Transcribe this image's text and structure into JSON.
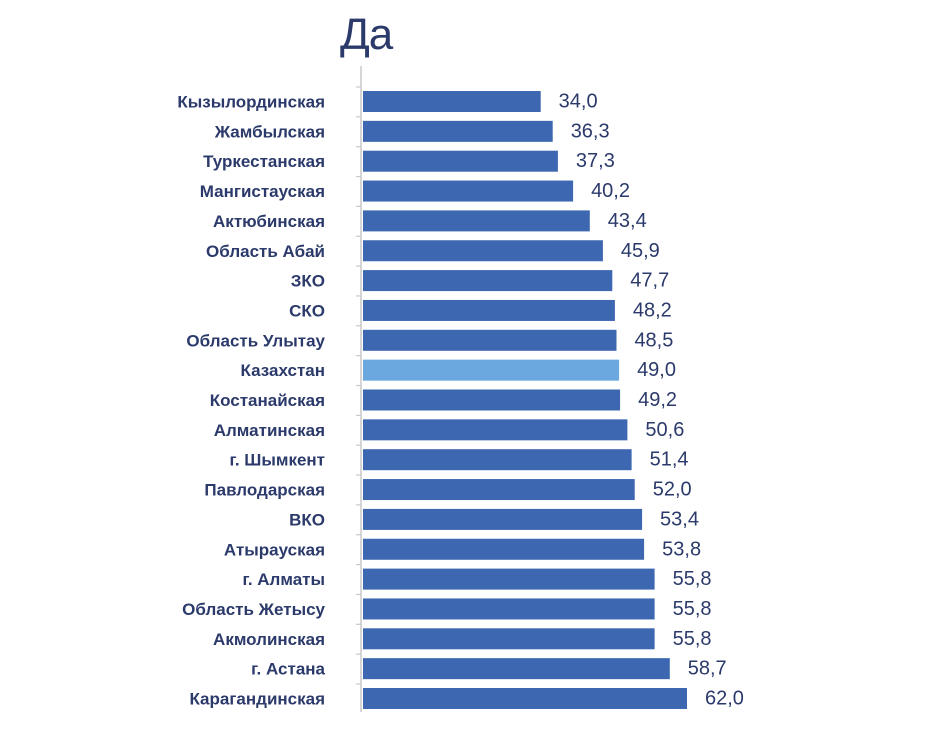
{
  "chart_data": {
    "type": "bar",
    "orientation": "horizontal",
    "title": "Да",
    "xlabel": "",
    "ylabel": "",
    "xlim": [
      0,
      62
    ],
    "grid": false,
    "legend": "none",
    "categories": [
      "Кызылординская",
      "Жамбылская",
      "Туркестанская",
      "Мангистауская",
      "Актюбинская",
      "Область Абай",
      "ЗКО",
      "СКО",
      "Область Улытау",
      "Казахстан",
      "Костанайская",
      "Алматинская",
      "г. Шымкент",
      "Павлодарская",
      "ВКО",
      "Атырауская",
      "г. Алматы",
      "Область Жетысу",
      "Акмолинская",
      "г. Астана",
      "Карагандинская"
    ],
    "values": [
      34.0,
      36.3,
      37.3,
      40.2,
      43.4,
      45.9,
      47.7,
      48.2,
      48.5,
      49.0,
      49.2,
      50.6,
      51.4,
      52.0,
      53.4,
      53.8,
      55.8,
      55.8,
      55.8,
      58.7,
      62.0
    ],
    "value_labels": [
      "34,0",
      "36,3",
      "37,3",
      "40,2",
      "43,4",
      "45,9",
      "47,7",
      "48,2",
      "48,5",
      "49,0",
      "49,2",
      "50,6",
      "51,4",
      "52,0",
      "53,4",
      "53,8",
      "55,8",
      "55,8",
      "55,8",
      "58,7",
      "62,0"
    ],
    "highlight": "Казахстан",
    "colors": {
      "bar": "#3d67b1",
      "highlight": "#6aa8df",
      "text": "#2b3a6b",
      "axis": "#c9c9c9"
    }
  }
}
